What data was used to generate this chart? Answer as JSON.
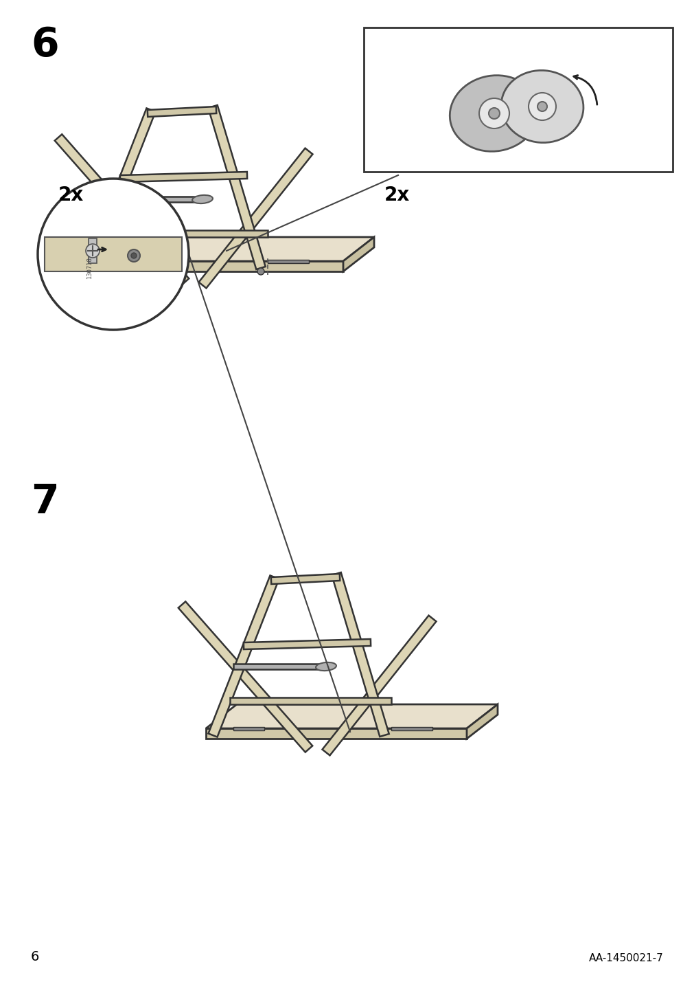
{
  "page_number": "6",
  "doc_code": "AA-1450021-7",
  "background_color": "#ffffff",
  "step6_label": "6",
  "step7_label": "7",
  "step6_2x_label": "2x",
  "step7_2x_label": "2x",
  "line_color": "#1a1a1a",
  "wood_fill": "#d4c9a8",
  "wood_stroke": "#1a1a1a",
  "gray_fill": "#b0b0b0",
  "gray_stroke": "#1a1a1a",
  "metal_fill": "#c8c8c8",
  "metal_stroke": "#1a1a1a",
  "label_fontsize": 36,
  "small_fontsize": 14,
  "page_num_fontsize": 14,
  "doc_code_fontsize": 11
}
